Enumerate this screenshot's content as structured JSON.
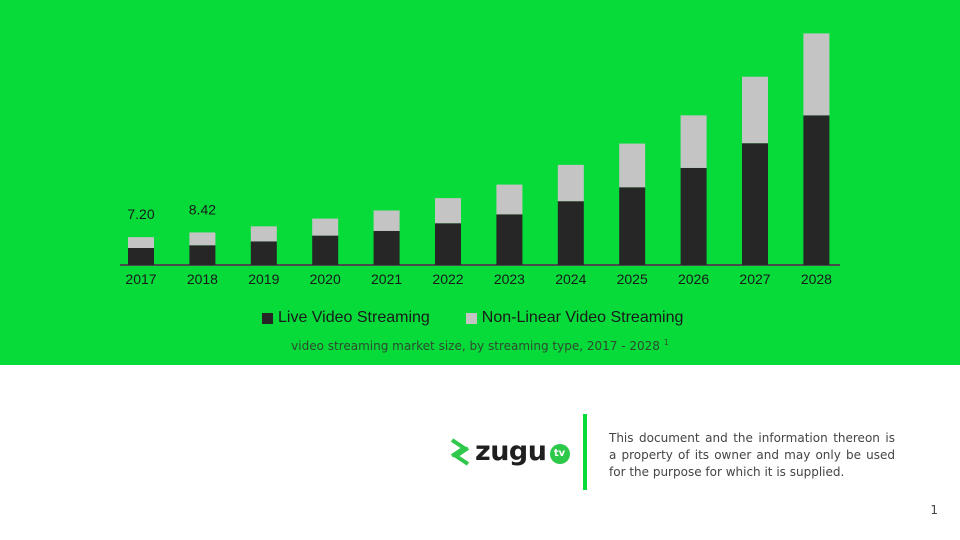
{
  "chart_data": {
    "type": "bar",
    "stacked": true,
    "categories": [
      "2017",
      "2018",
      "2019",
      "2020",
      "2021",
      "2022",
      "2023",
      "2024",
      "2025",
      "2026",
      "2027",
      "2028"
    ],
    "series": [
      {
        "name": "Live Video Streaming",
        "color": "#262626",
        "values": [
          4.4,
          5.1,
          6.1,
          7.6,
          8.8,
          10.8,
          13.1,
          16.5,
          20.1,
          25.1,
          31.5,
          38.7
        ]
      },
      {
        "name": "Non-Linear Video Streaming",
        "color": "#c4c4c4",
        "values": [
          2.8,
          3.32,
          3.9,
          4.4,
          5.3,
          6.5,
          7.7,
          9.4,
          11.3,
          13.6,
          17.2,
          21.2
        ]
      }
    ],
    "data_labels": [
      {
        "category": "2017",
        "text": "7.20"
      },
      {
        "category": "2018",
        "text": "8.42"
      }
    ],
    "ylim": [
      0,
      60
    ],
    "grid": false,
    "legend_position": "bottom"
  },
  "caption": {
    "text": "video streaming market size, by streaming type, 2017 - 2028",
    "footnote": "1"
  },
  "footer": {
    "logo_text": "zugu",
    "logo_badge": "tv",
    "disclaimer": "This document and the information thereon is a property of its owner and may only be used for the purpose for which it is supplied.",
    "page_number": "1"
  },
  "colors": {
    "background_green": "#06db3a",
    "logo_green": "#2ec94a"
  }
}
